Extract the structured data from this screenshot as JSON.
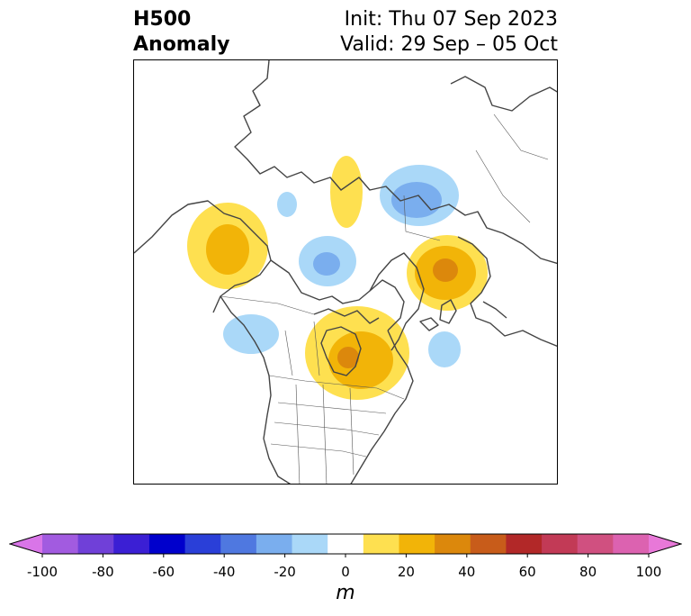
{
  "title": {
    "left_line1": "H500",
    "left_line2": "Anomaly",
    "right_line1": "Init: Thu 07 Sep 2023",
    "right_line2": "Valid: 29 Sep – 05 Oct"
  },
  "map": {
    "projection": "polar stereographic, North America / Arctic view",
    "anomalies": [
      {
        "region": "Gulf of Alaska / northeast Pacific",
        "sign": "positive",
        "max_level": 20
      },
      {
        "region": "Bering Strait / East Siberian Sea",
        "sign": "positive",
        "max_level": 10
      },
      {
        "region": "Chukchi Sea",
        "sign": "negative",
        "max_level": -10
      },
      {
        "region": "Arctic Ocean near North Pole",
        "sign": "negative",
        "max_level": -30
      },
      {
        "region": "Western Siberia / Kara Sea",
        "sign": "negative",
        "max_level": -20
      },
      {
        "region": "Scandinavia",
        "sign": "positive",
        "max_level": 30
      },
      {
        "region": "Hudson Bay / central Canada",
        "sign": "positive",
        "max_level": 30
      },
      {
        "region": "Eastern Pacific off Pacific Northwest",
        "sign": "negative",
        "max_level": -10
      },
      {
        "region": "North Atlantic",
        "sign": "negative",
        "max_level": -10
      }
    ]
  },
  "colorbar": {
    "label": "m",
    "ticks": [
      "-100",
      "-80",
      "-60",
      "-40",
      "-20",
      "0",
      "20",
      "40",
      "60",
      "80",
      "100"
    ],
    "bounds": [
      -100,
      100
    ],
    "extend": "both",
    "colors": [
      "#d975e8",
      "#a25be0",
      "#7040d8",
      "#3b1fd4",
      "#0000cc",
      "#2a3fd8",
      "#4f78e0",
      "#7aaeee",
      "#aad8f8",
      "#ffffff",
      "#fee050",
      "#f2b408",
      "#dc880c",
      "#c85c1a",
      "#b22828",
      "#c23a56",
      "#d05080",
      "#dc62b0",
      "#e878d8"
    ]
  }
}
